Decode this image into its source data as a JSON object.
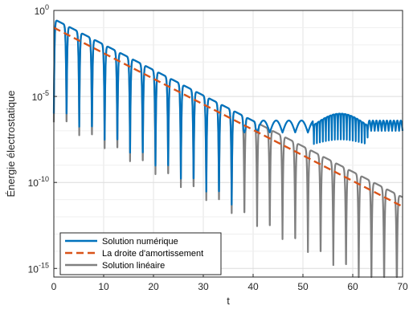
{
  "chart_data": {
    "type": "line",
    "title": "",
    "xlabel": "t",
    "ylabel": "Énergie électrostatique",
    "xlim": [
      0,
      70
    ],
    "ylim_exponent": [
      -15.5,
      0
    ],
    "yscale": "log",
    "grid": true,
    "x_ticks": [
      "0",
      "10",
      "20",
      "30",
      "40",
      "50",
      "60",
      "70"
    ],
    "y_ticks": [
      {
        "exp": 0,
        "label": "10",
        "sup": "0"
      },
      {
        "exp": -5,
        "label": "10",
        "sup": "-5"
      },
      {
        "exp": -10,
        "label": "10",
        "sup": "-10"
      },
      {
        "exp": -15,
        "label": "10",
        "sup": "-15"
      }
    ],
    "legend_position": "bottom-left",
    "series": [
      {
        "name": "Solution numérique",
        "color": "#0072BD",
        "style": "solid",
        "model": {
          "kind": "damped_oscillation",
          "start_exp": -0.5,
          "decay_per_unit": -0.148,
          "half_period": 2.55,
          "floor_exp": -6.7,
          "plateau_start": 52,
          "plateau_end": 63,
          "plateau_peak_exp": -6.0,
          "plateau_dip_exp": -8.5
        }
      },
      {
        "name": "La droite d'amortissement",
        "color": "#D95319",
        "style": "dashed",
        "line": {
          "x": [
            0,
            70
          ],
          "y_exp": [
            -1.0,
            -11.4
          ]
        }
      },
      {
        "name": "Solution linéaire",
        "color": "#808080",
        "style": "solid",
        "model": {
          "kind": "damped_oscillation",
          "start_exp": -0.5,
          "decay_per_unit": -0.148,
          "half_period": 2.55,
          "dip_depth_exp": -6.0
        }
      }
    ]
  }
}
